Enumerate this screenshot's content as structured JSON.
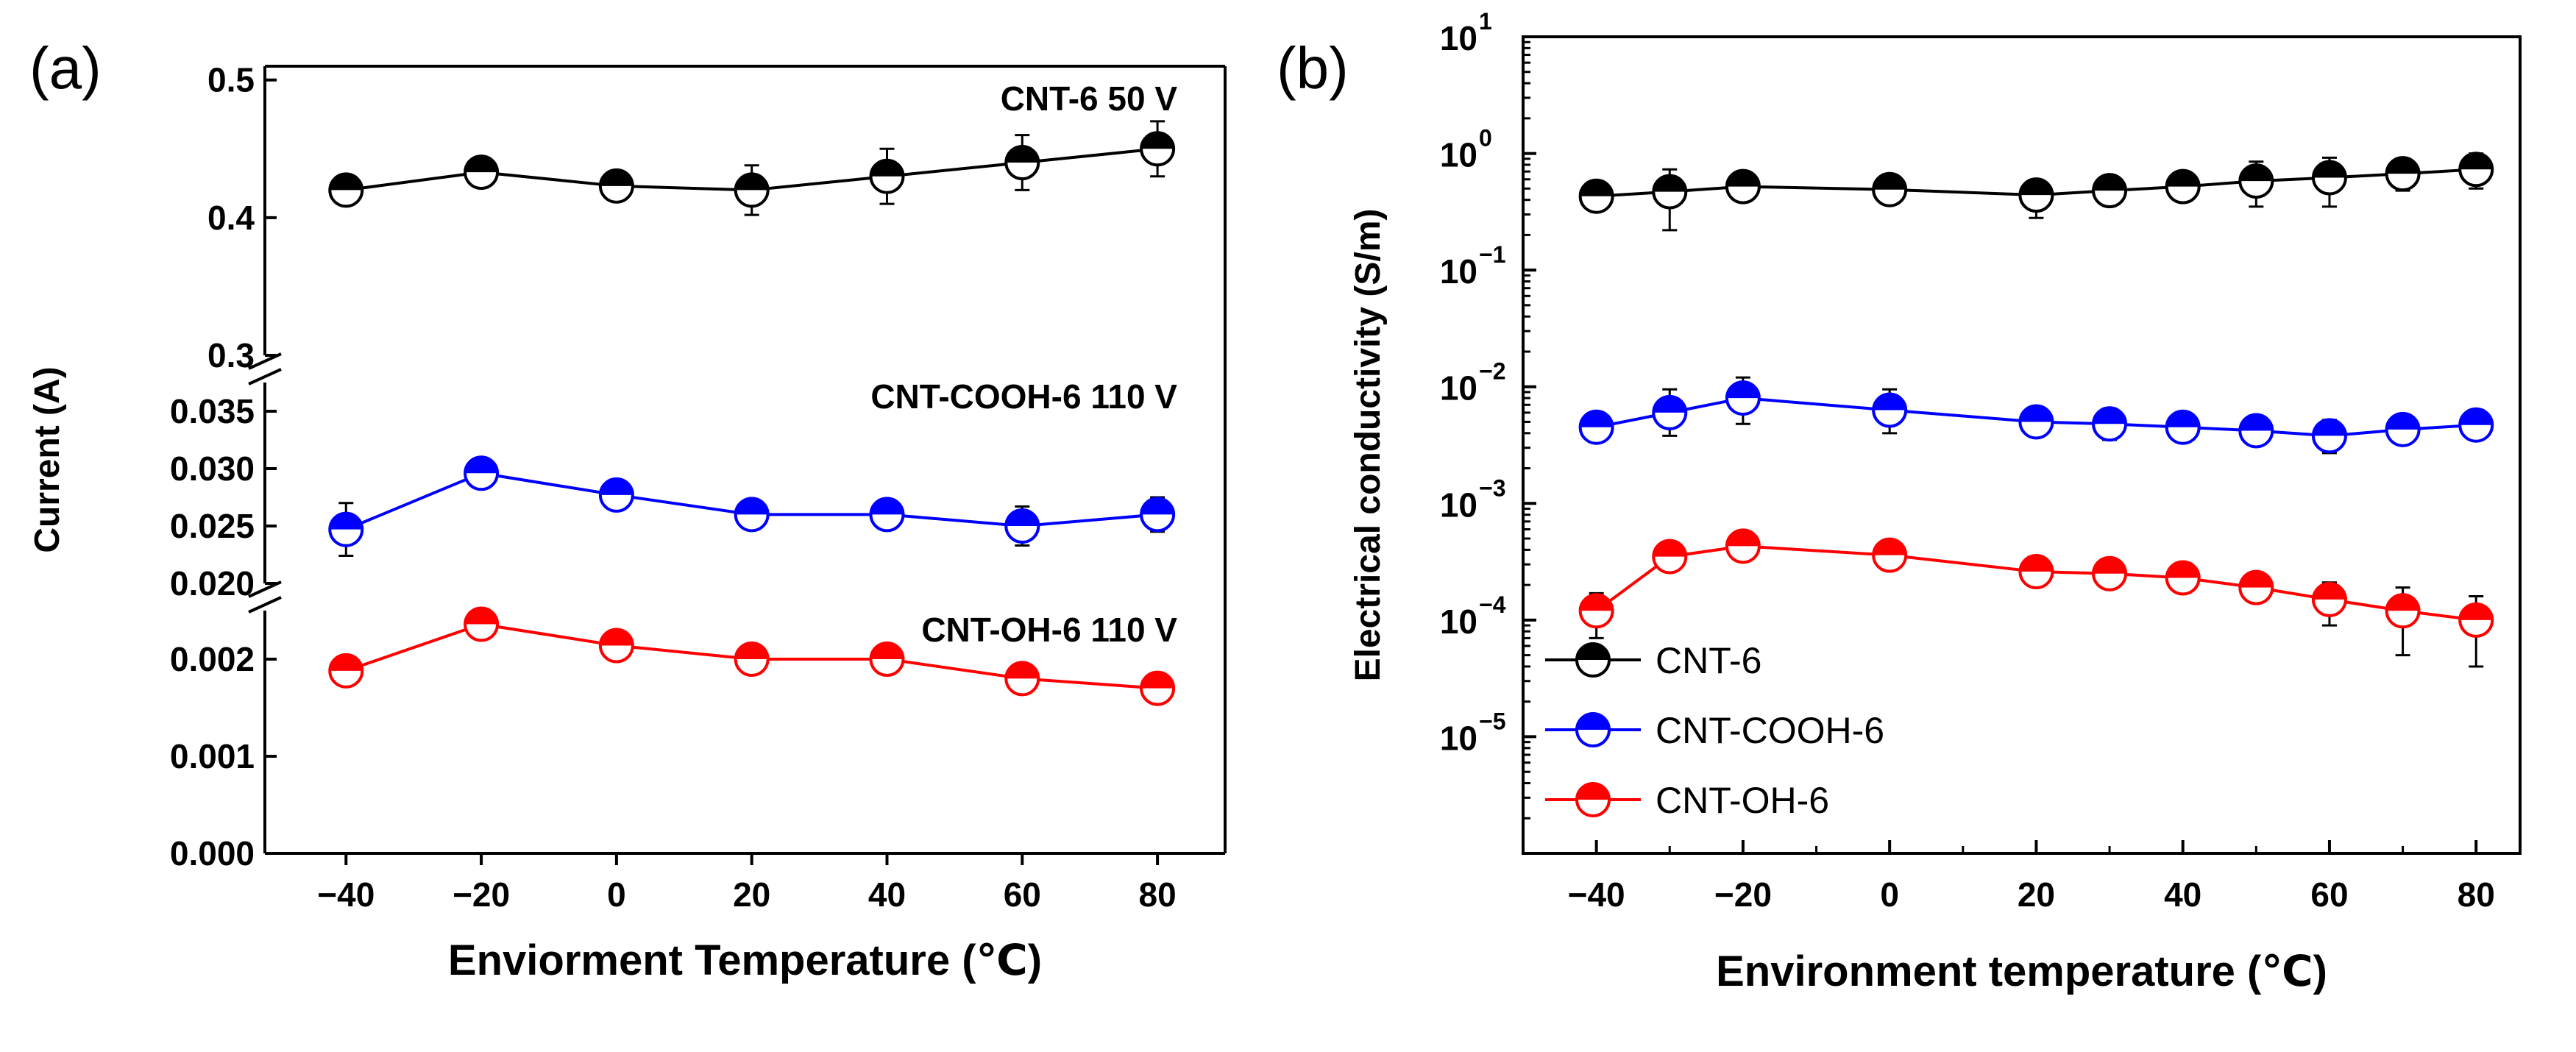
{
  "chart_data": [
    {
      "panel_label": "(a)",
      "type": "line",
      "x_axis": {
        "label": "Enviorment Temperature (℃)",
        "ticks": [
          -40,
          -20,
          0,
          20,
          40,
          60,
          80
        ],
        "tick_labels": [
          "−40",
          "−20",
          "0",
          "20",
          "40",
          "60",
          "80"
        ],
        "range": [
          -52,
          90
        ]
      },
      "y_axis": {
        "label": "Current (A)",
        "broken": true,
        "segments": [
          {
            "range": [
              0.0,
              0.0025
            ],
            "ticks": [
              0.0,
              0.001,
              0.002
            ],
            "tick_labels": [
              "0.000",
              "0.001",
              "0.002"
            ]
          },
          {
            "range": [
              0.02,
              0.0375
            ],
            "ticks": [
              0.02,
              0.025,
              0.03,
              0.035
            ],
            "tick_labels": [
              "0.020",
              "0.025",
              "0.030",
              "0.035"
            ]
          },
          {
            "range": [
              0.3,
              0.51
            ],
            "ticks": [
              0.3,
              0.4,
              0.5
            ],
            "tick_labels": [
              "0.3",
              "0.4",
              "0.5"
            ]
          }
        ]
      },
      "series": [
        {
          "name": "CNT-6 50 V",
          "segment": 2,
          "color": "#000000",
          "x": [
            -40,
            -20,
            0,
            20,
            40,
            60,
            80
          ],
          "y": [
            0.42,
            0.433,
            0.423,
            0.42,
            0.43,
            0.44,
            0.45
          ],
          "err": [
            0.008,
            0.006,
            0.008,
            0.018,
            0.02,
            0.02,
            0.02
          ]
        },
        {
          "name": "CNT-COOH-6 110 V",
          "segment": 1,
          "color": "#0000ff",
          "x": [
            -40,
            -20,
            0,
            20,
            40,
            60,
            80
          ],
          "y": [
            0.0247,
            0.0296,
            0.0277,
            0.026,
            0.026,
            0.025,
            0.026
          ],
          "err": [
            0.0023,
            0.0012,
            0.0012,
            0.0013,
            0.0013,
            0.0017,
            0.0015
          ]
        },
        {
          "name": "CNT-OH-6 110 V",
          "segment": 0,
          "color": "#ff0000",
          "x": [
            -40,
            -20,
            0,
            20,
            40,
            60,
            80
          ],
          "y": [
            0.00188,
            0.00236,
            0.00214,
            0.002,
            0.002,
            0.0018,
            0.0017
          ],
          "err": [
            0,
            0,
            0,
            0,
            0,
            0,
            0
          ]
        }
      ]
    },
    {
      "panel_label": "(b)",
      "type": "line",
      "x_axis": {
        "label": "Environment temperature (℃)",
        "ticks": [
          -40,
          -20,
          0,
          20,
          40,
          60,
          80
        ],
        "tick_labels": [
          "−40",
          "−20",
          "0",
          "20",
          "40",
          "60",
          "80"
        ],
        "range": [
          -50,
          86
        ]
      },
      "y_axis": {
        "label": "Electrical conductivity (S/m)",
        "scale": "log",
        "log_range": [
          -6,
          1
        ],
        "tick_exponents": [
          1,
          0,
          -1,
          -2,
          -3,
          -4,
          -5
        ],
        "tick_base": "10",
        "tick_exponent_labels": [
          "1",
          "0",
          "−1",
          "−2",
          "−3",
          "−4",
          "−5"
        ]
      },
      "legend": {
        "position": "bottom-left",
        "entries": [
          "CNT-6",
          "CNT-COOH-6",
          "CNT-OH-6"
        ]
      },
      "series": [
        {
          "name": "CNT-6",
          "color": "#000000",
          "x": [
            -40,
            -30,
            -20,
            0,
            20,
            30,
            40,
            50,
            60,
            70,
            80
          ],
          "y": [
            0.43,
            0.47,
            0.52,
            0.49,
            0.44,
            0.48,
            0.52,
            0.58,
            0.62,
            0.67,
            0.73
          ],
          "err_lo": [
            0.37,
            0.22,
            0.45,
            0.42,
            0.28,
            0.41,
            0.45,
            0.35,
            0.35,
            0.48,
            0.5
          ],
          "err_hi": [
            0.5,
            0.73,
            0.58,
            0.56,
            0.58,
            0.56,
            0.6,
            0.85,
            0.92,
            0.88,
            1.0
          ]
        },
        {
          "name": "CNT-COOH-6",
          "color": "#0000ff",
          "x": [
            -40,
            -30,
            -20,
            0,
            20,
            30,
            40,
            50,
            60,
            70,
            80
          ],
          "y": [
            0.0045,
            0.006,
            0.008,
            0.0063,
            0.005,
            0.0048,
            0.0045,
            0.0042,
            0.0038,
            0.0043,
            0.0047
          ],
          "err_lo": [
            0.0035,
            0.0038,
            0.0048,
            0.004,
            0.0043,
            0.0035,
            0.0034,
            0.0033,
            0.0027,
            0.0033,
            0.0041
          ],
          "err_hi": [
            0.0057,
            0.0095,
            0.012,
            0.0095,
            0.0057,
            0.0065,
            0.006,
            0.0055,
            0.0052,
            0.0055,
            0.0054
          ]
        },
        {
          "name": "CNT-OH-6",
          "color": "#ff0000",
          "x": [
            -40,
            -30,
            -20,
            0,
            20,
            30,
            40,
            50,
            60,
            70,
            80
          ],
          "y": [
            0.00012,
            0.00035,
            0.00043,
            0.00036,
            0.00026,
            0.00025,
            0.00023,
            0.00019,
            0.00015,
            0.00012,
            0.0001
          ],
          "err_lo": [
            7e-05,
            0.00032,
            0.00039,
            0.00033,
            0.00022,
            0.00019,
            0.00018,
            0.00016,
            9e-05,
            5e-05,
            4e-05
          ],
          "err_hi": [
            0.00017,
            0.00038,
            0.00047,
            0.0004,
            0.0003,
            0.00031,
            0.00028,
            0.00022,
            0.00021,
            0.00019,
            0.00016
          ]
        }
      ]
    }
  ]
}
